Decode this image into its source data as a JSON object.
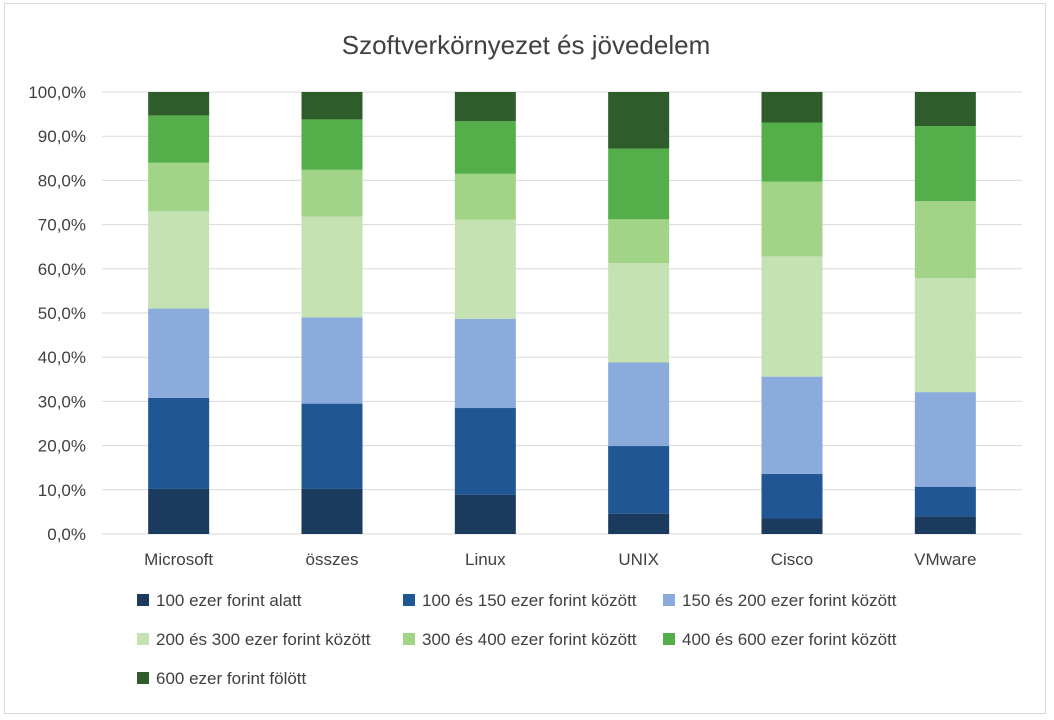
{
  "chart_data": {
    "type": "bar",
    "stacked": true,
    "title": "Szoftverkörnyezet és jövedelem",
    "xlabel": "",
    "ylabel": "",
    "ylim": [
      0,
      100
    ],
    "y_tick_labels": [
      "0,0%",
      "10,0%",
      "20,0%",
      "30,0%",
      "40,0%",
      "50,0%",
      "60,0%",
      "70,0%",
      "80,0%",
      "90,0%",
      "100,0%"
    ],
    "grid": true,
    "legend_position": "bottom",
    "categories": [
      "Microsoft",
      "összes",
      "Linux",
      "UNIX",
      "Cisco",
      "VMware"
    ],
    "series": [
      {
        "name": "100 ezer forint alatt",
        "color": "#1a3a5e",
        "values": [
          10.2,
          10.2,
          8.9,
          4.6,
          3.5,
          4.0
        ]
      },
      {
        "name": "100 és 150 ezer forint között",
        "color": "#1f5693",
        "values": [
          20.6,
          19.3,
          19.6,
          15.3,
          10.1,
          6.7
        ]
      },
      {
        "name": "150 és 200 ezer forint között",
        "color": "#8aabdb",
        "values": [
          20.2,
          19.5,
          20.2,
          18.9,
          22.0,
          21.4
        ]
      },
      {
        "name": "200 és 300 ezer forint között",
        "color": "#c5e2b3",
        "values": [
          22.0,
          22.8,
          22.4,
          22.5,
          27.2,
          25.8
        ]
      },
      {
        "name": "300 és 400 ezer forint között",
        "color": "#a1d487",
        "values": [
          11.0,
          10.6,
          10.4,
          9.9,
          16.9,
          17.4
        ]
      },
      {
        "name": "400 és 600 ezer forint között",
        "color": "#54ae4a",
        "values": [
          10.7,
          11.4,
          11.9,
          16.0,
          13.4,
          17.0
        ]
      },
      {
        "name": "600 ezer forint fölött",
        "color": "#2e5c2a",
        "values": [
          5.3,
          6.2,
          6.6,
          12.8,
          6.9,
          7.7
        ]
      }
    ]
  }
}
